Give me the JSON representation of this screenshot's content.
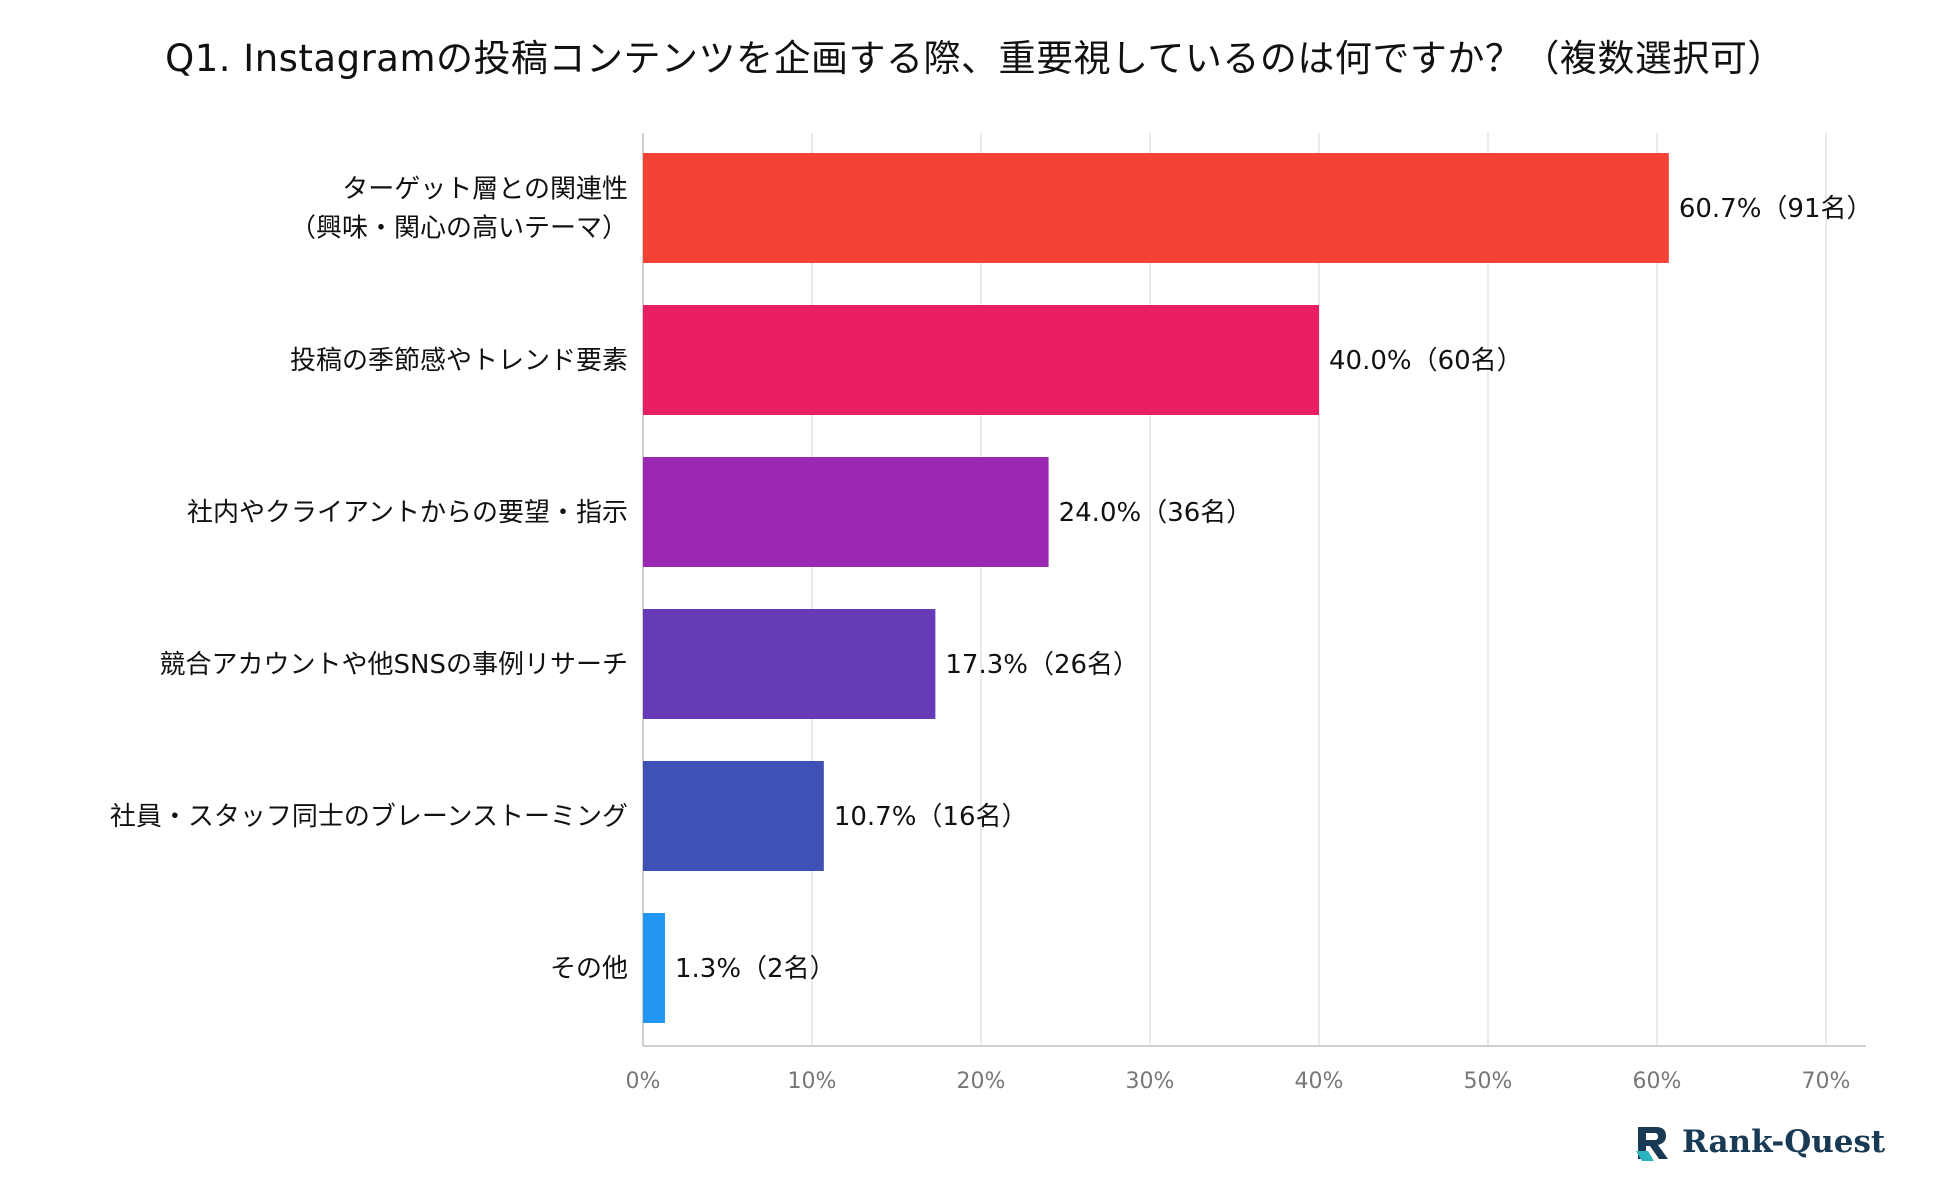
{
  "chart_data": {
    "type": "bar",
    "orientation": "horizontal",
    "title": "Q1. Instagramの投稿コンテンツを企画する際、重要視しているのは何ですか？（複数選択可）",
    "categories": [
      [
        "ターゲット層との関連性",
        "（興味・関心の高いテーマ）"
      ],
      [
        "投稿の季節感やトレンド要素"
      ],
      [
        "社内やクライアントからの要望・指示"
      ],
      [
        "競合アカウントや他SNSの事例リサーチ"
      ],
      [
        "社員・スタッフ同士のブレーンストーミング"
      ],
      [
        "その他"
      ]
    ],
    "values": [
      60.7,
      40.0,
      24.0,
      17.3,
      10.7,
      1.3
    ],
    "value_labels": [
      "60.7%（91名）",
      "40.0%（60名）",
      "24.0%（36名）",
      "17.3%（26名）",
      "10.7%（16名）",
      "1.3%（2名）"
    ],
    "colors": [
      "#f44336",
      "#e91e63",
      "#9c27b0",
      "#673ab7",
      "#3f51b5",
      "#2196f3"
    ],
    "xlim": [
      0,
      70
    ],
    "ticks": [
      "0%",
      "10%",
      "20%",
      "30%",
      "40%",
      "50%",
      "60%",
      "70%"
    ],
    "tick_values": [
      0,
      10,
      20,
      30,
      40,
      50,
      60,
      70
    ],
    "grid": true,
    "legend": "none"
  },
  "logo": {
    "text": "Rank-Quest",
    "mark_color": "#183a55",
    "accent_color": "#2bb3c0"
  }
}
